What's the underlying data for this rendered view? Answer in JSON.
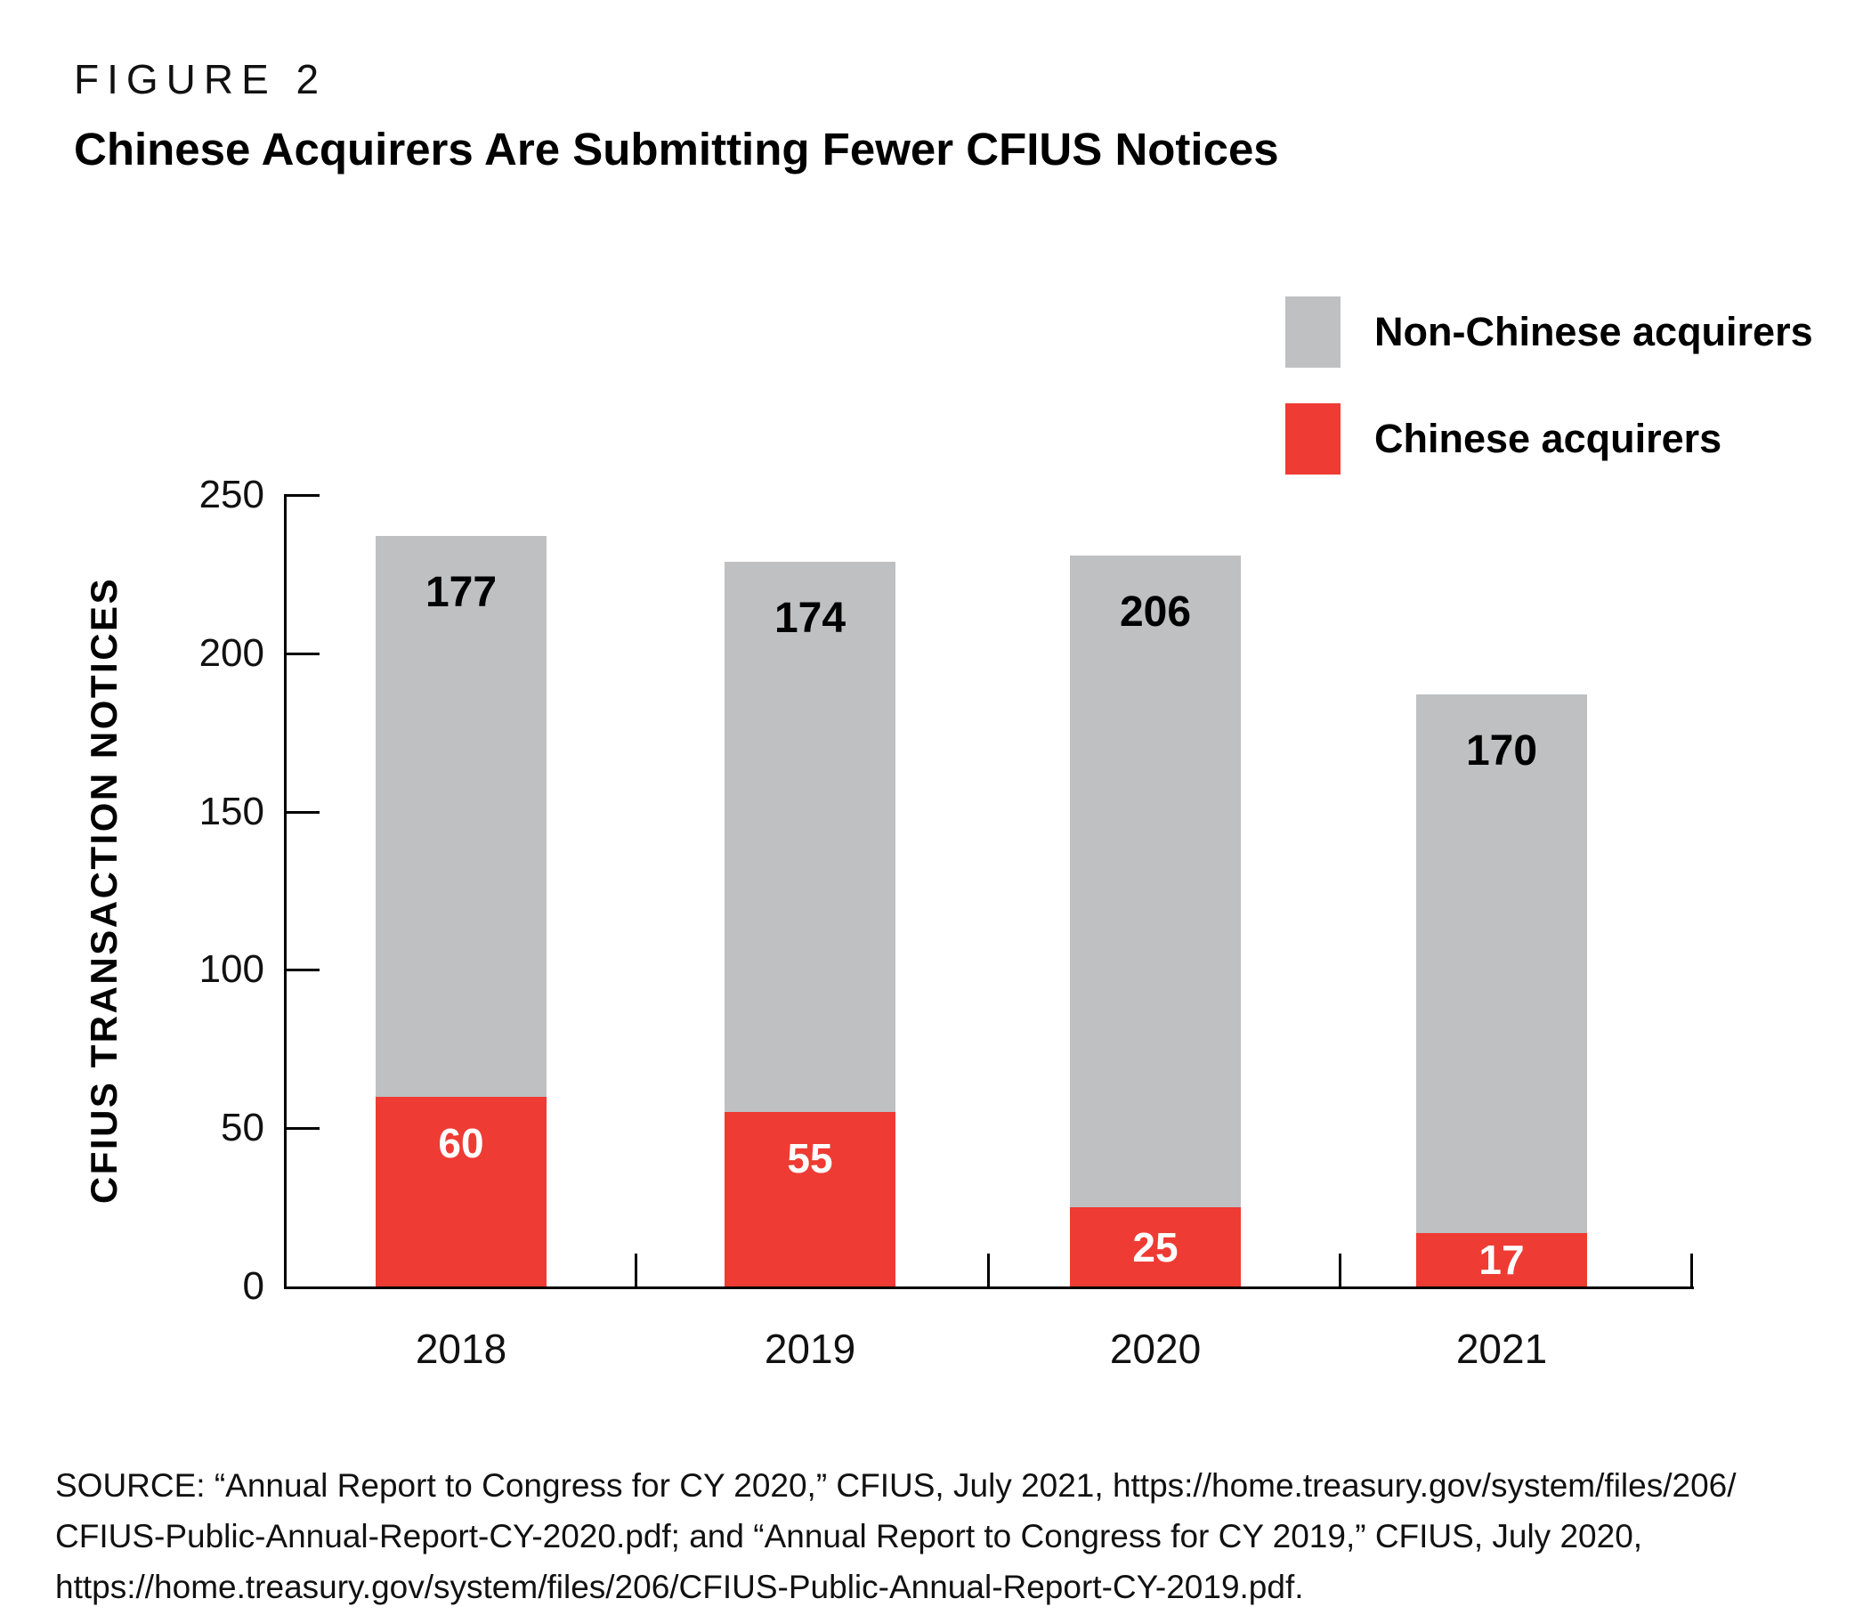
{
  "figure": {
    "label": "FIGURE 2",
    "title": "Chinese Acquirers Are Submitting Fewer CFIUS Notices"
  },
  "colors": {
    "chinese": "#ee3b33",
    "non_chinese": "#bec0c2",
    "axis": "#000000",
    "value_label_on_gray": "#000000",
    "value_label_on_red": "#ffffff"
  },
  "legend": {
    "items": [
      {
        "label": "Non-Chinese acquirers",
        "color": "#bec0c2"
      },
      {
        "label": "Chinese acquirers",
        "color": "#ee3b33"
      }
    ]
  },
  "chart_data": {
    "type": "bar",
    "stacked": true,
    "title": "Chinese Acquirers Are Submitting Fewer CFIUS Notices",
    "categories": [
      "2018",
      "2019",
      "2020",
      "2021"
    ],
    "series": [
      {
        "name": "Chinese acquirers",
        "color": "#ee3b33",
        "values": [
          60,
          55,
          25,
          17
        ]
      },
      {
        "name": "Non-Chinese acquirers",
        "color": "#bec0c2",
        "values": [
          177,
          174,
          206,
          170
        ]
      }
    ],
    "totals": [
      237,
      229,
      231,
      187
    ],
    "xlabel": "",
    "ylabel": "CFIUS TRANSACTION NOTICES",
    "ylim": [
      0,
      250
    ],
    "yticks": [
      0,
      50,
      100,
      150,
      200,
      250
    ],
    "grid": false,
    "legend_position": "top-right"
  },
  "source": "SOURCE: “Annual Report to Congress for CY 2020,” CFIUS, July 2021, https://home.treasury.gov/system/files/206/\nCFIUS-Public-Annual-Report-CY-2020.pdf; and “Annual Report to Congress for CY 2019,” CFIUS, July 2020,\nhttps://home.treasury.gov/system/files/206/CFIUS-Public-Annual-Report-CY-2019.pdf."
}
